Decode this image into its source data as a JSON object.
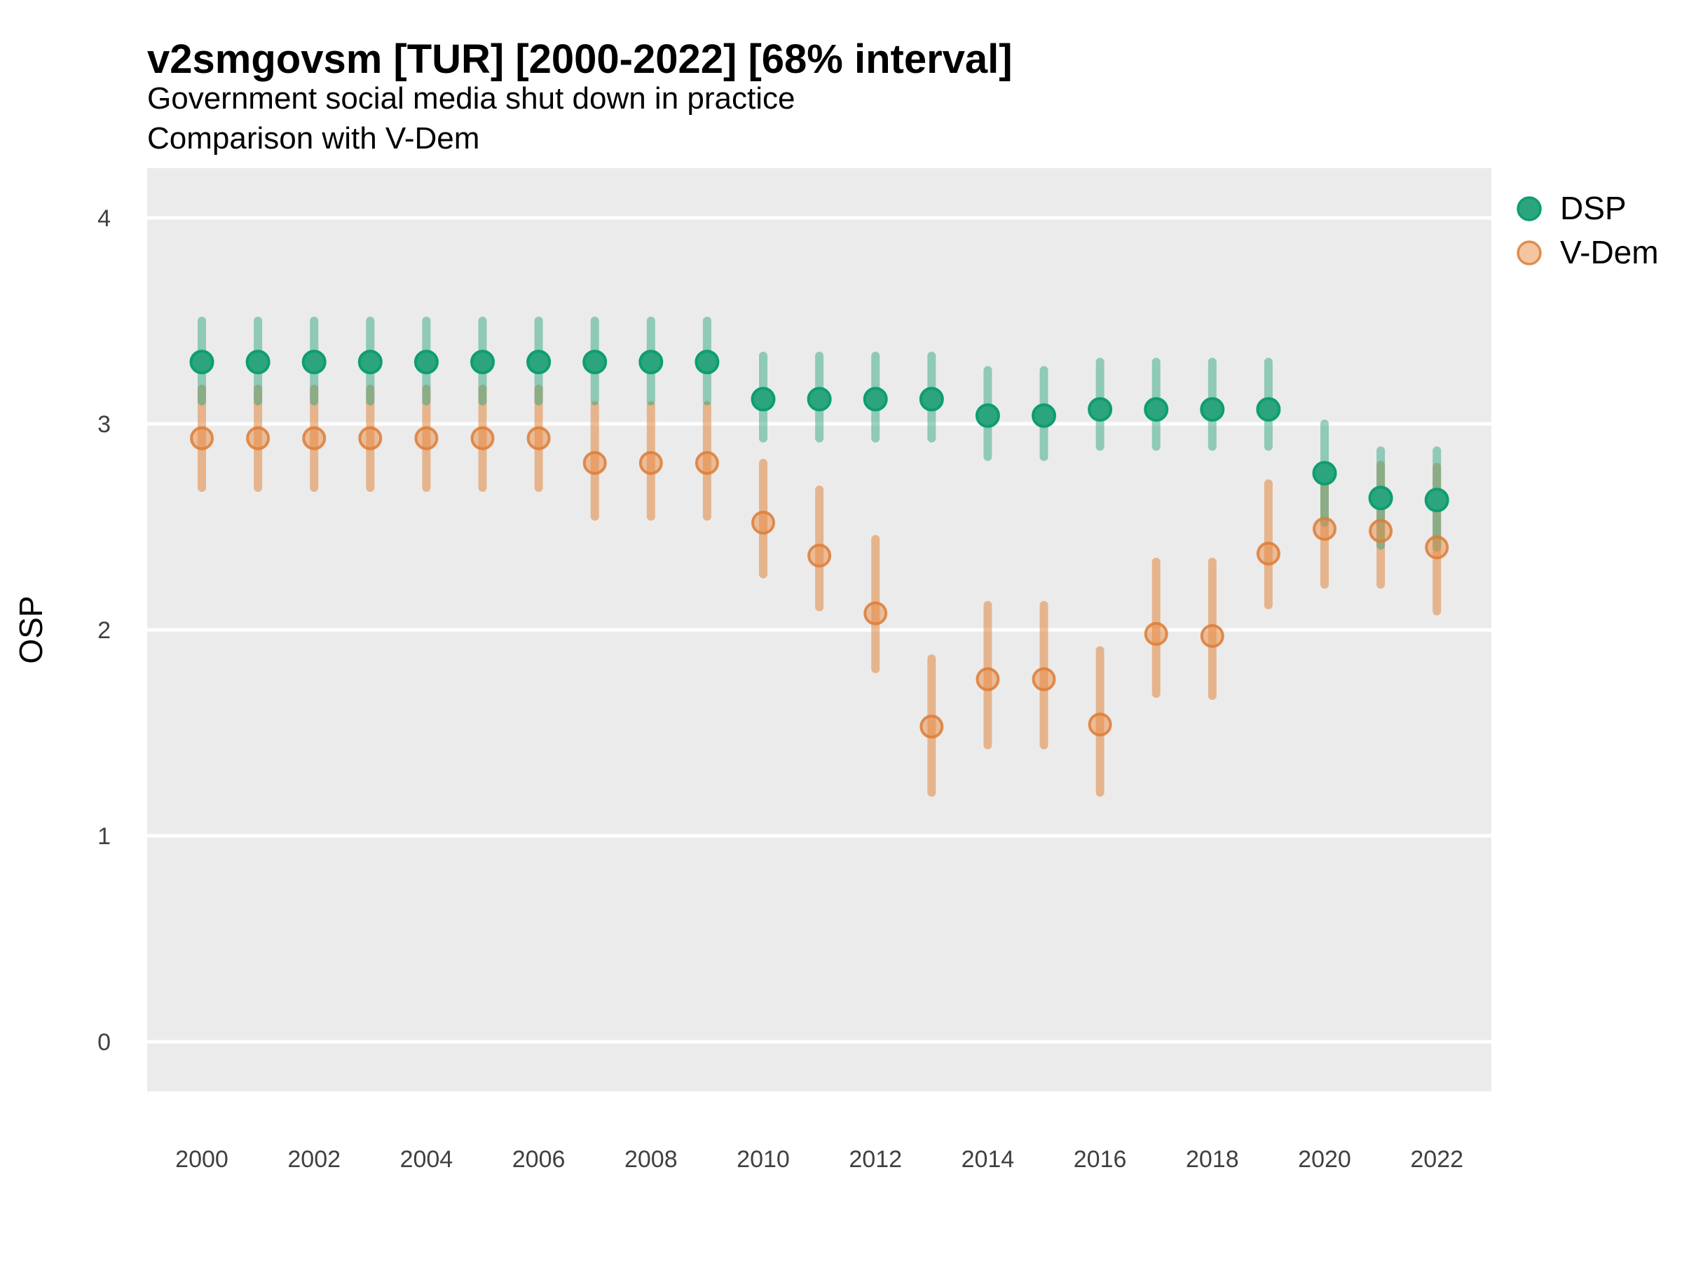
{
  "header": {
    "title": "v2smgovsm [TUR] [2000-2022] [68% interval]",
    "subtitle1": "Government social media shut down in practice",
    "subtitle2": "Comparison with V-Dem"
  },
  "chart_data": {
    "type": "scatter",
    "subtype": "pointrange",
    "title": "v2smgovsm [TUR] [2000-2022] [68% interval]",
    "subtitle": "Government social media shut down in practice",
    "subtitle2": "Comparison with V-Dem",
    "interval": "68%",
    "xlabel": "",
    "ylabel": "OSP",
    "ylim": [
      -0.25,
      4.25
    ],
    "y_ticks": [
      0,
      1,
      2,
      3,
      4
    ],
    "x_tick_labels": [
      "2000",
      "2002",
      "2004",
      "2006",
      "2008",
      "2010",
      "2012",
      "2014",
      "2016",
      "2018",
      "2020",
      "2022"
    ],
    "grid": "horizontal-major-only",
    "legend_position": "right-top",
    "panel_background": "#ebebeb",
    "gridline_color": "#ffffff",
    "series": [
      {
        "name": "DSP",
        "point_color": "#2ca57e",
        "point_stroke": "#0d9e6f",
        "bar_color": "rgba(42,163,126,0.48)",
        "values": [
          {
            "year": 2000,
            "y": 3.3,
            "lo": 3.11,
            "hi": 3.5
          },
          {
            "year": 2001,
            "y": 3.3,
            "lo": 3.11,
            "hi": 3.5
          },
          {
            "year": 2002,
            "y": 3.3,
            "lo": 3.11,
            "hi": 3.5
          },
          {
            "year": 2003,
            "y": 3.3,
            "lo": 3.11,
            "hi": 3.5
          },
          {
            "year": 2004,
            "y": 3.3,
            "lo": 3.11,
            "hi": 3.5
          },
          {
            "year": 2005,
            "y": 3.3,
            "lo": 3.11,
            "hi": 3.5
          },
          {
            "year": 2006,
            "y": 3.3,
            "lo": 3.11,
            "hi": 3.5
          },
          {
            "year": 2007,
            "y": 3.3,
            "lo": 3.11,
            "hi": 3.5
          },
          {
            "year": 2008,
            "y": 3.3,
            "lo": 3.11,
            "hi": 3.5
          },
          {
            "year": 2009,
            "y": 3.3,
            "lo": 3.11,
            "hi": 3.5
          },
          {
            "year": 2010,
            "y": 3.12,
            "lo": 2.93,
            "hi": 3.33
          },
          {
            "year": 2011,
            "y": 3.12,
            "lo": 2.93,
            "hi": 3.33
          },
          {
            "year": 2012,
            "y": 3.12,
            "lo": 2.93,
            "hi": 3.33
          },
          {
            "year": 2013,
            "y": 3.12,
            "lo": 2.93,
            "hi": 3.33
          },
          {
            "year": 2014,
            "y": 3.04,
            "lo": 2.84,
            "hi": 3.26
          },
          {
            "year": 2015,
            "y": 3.04,
            "lo": 2.84,
            "hi": 3.26
          },
          {
            "year": 2016,
            "y": 3.07,
            "lo": 2.89,
            "hi": 3.3
          },
          {
            "year": 2017,
            "y": 3.07,
            "lo": 2.89,
            "hi": 3.3
          },
          {
            "year": 2018,
            "y": 3.07,
            "lo": 2.89,
            "hi": 3.3
          },
          {
            "year": 2019,
            "y": 3.07,
            "lo": 2.89,
            "hi": 3.3
          },
          {
            "year": 2020,
            "y": 2.76,
            "lo": 2.52,
            "hi": 3.0
          },
          {
            "year": 2021,
            "y": 2.64,
            "lo": 2.41,
            "hi": 2.87
          },
          {
            "year": 2022,
            "y": 2.63,
            "lo": 2.4,
            "hi": 2.87
          }
        ]
      },
      {
        "name": "V-Dem",
        "point_color": "rgba(233,140,68,0.5)",
        "point_stroke": "rgba(220,125,55,0.85)",
        "bar_color": "rgba(225,134,62,0.55)",
        "values": [
          {
            "year": 2000,
            "y": 2.93,
            "lo": 2.69,
            "hi": 3.17
          },
          {
            "year": 2001,
            "y": 2.93,
            "lo": 2.69,
            "hi": 3.17
          },
          {
            "year": 2002,
            "y": 2.93,
            "lo": 2.69,
            "hi": 3.17
          },
          {
            "year": 2003,
            "y": 2.93,
            "lo": 2.69,
            "hi": 3.17
          },
          {
            "year": 2004,
            "y": 2.93,
            "lo": 2.69,
            "hi": 3.17
          },
          {
            "year": 2005,
            "y": 2.93,
            "lo": 2.69,
            "hi": 3.17
          },
          {
            "year": 2006,
            "y": 2.93,
            "lo": 2.69,
            "hi": 3.17
          },
          {
            "year": 2007,
            "y": 2.81,
            "lo": 2.55,
            "hi": 3.09
          },
          {
            "year": 2008,
            "y": 2.81,
            "lo": 2.55,
            "hi": 3.09
          },
          {
            "year": 2009,
            "y": 2.81,
            "lo": 2.55,
            "hi": 3.09
          },
          {
            "year": 2010,
            "y": 2.52,
            "lo": 2.27,
            "hi": 2.81
          },
          {
            "year": 2011,
            "y": 2.36,
            "lo": 2.11,
            "hi": 2.68
          },
          {
            "year": 2012,
            "y": 2.08,
            "lo": 1.81,
            "hi": 2.44
          },
          {
            "year": 2013,
            "y": 1.53,
            "lo": 1.21,
            "hi": 1.86
          },
          {
            "year": 2014,
            "y": 1.76,
            "lo": 1.44,
            "hi": 2.12
          },
          {
            "year": 2015,
            "y": 1.76,
            "lo": 1.44,
            "hi": 2.12
          },
          {
            "year": 2016,
            "y": 1.54,
            "lo": 1.21,
            "hi": 1.9
          },
          {
            "year": 2017,
            "y": 1.98,
            "lo": 1.69,
            "hi": 2.33
          },
          {
            "year": 2018,
            "y": 1.97,
            "lo": 1.68,
            "hi": 2.33
          },
          {
            "year": 2019,
            "y": 2.37,
            "lo": 2.12,
            "hi": 2.71
          },
          {
            "year": 2020,
            "y": 2.49,
            "lo": 2.22,
            "hi": 2.71
          },
          {
            "year": 2021,
            "y": 2.48,
            "lo": 2.22,
            "hi": 2.8
          },
          {
            "year": 2022,
            "y": 2.4,
            "lo": 2.09,
            "hi": 2.79
          }
        ]
      }
    ]
  },
  "colors": {
    "page_background": "#ffffff",
    "panel_background": "#ebebeb",
    "gridline": "#ffffff",
    "tick_label": "#404040",
    "text": "#000000",
    "dsp_green": "#2ca57e",
    "vdem_orange": "#e1863e"
  }
}
